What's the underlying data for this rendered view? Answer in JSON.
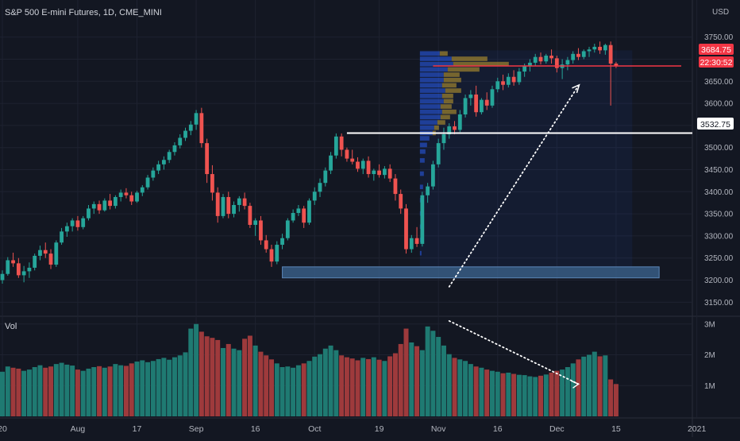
{
  "header": {
    "symbol_title": "S&P 500 E-mini Futures, 1D, CME_MINI",
    "currency": "USD"
  },
  "volume_pane": {
    "label": "Vol"
  },
  "price_badges": {
    "last_price": "3684.75",
    "countdown": "22:30:52",
    "level": "3532.75"
  },
  "colors": {
    "background": "#131722",
    "up": "#26a69a",
    "down": "#ef5350",
    "vol_up": "#1f7a72",
    "vol_down": "#9e3a3c",
    "level_line": "#ffffff",
    "last_price_line": "#f23645",
    "zone": "#3f6a97",
    "profile_up": "#2962ff",
    "profile_value": "#b8962e",
    "grid": "#1e2230",
    "axis_text": "#b2b5be"
  },
  "chart_data": [
    {
      "type": "candlestick",
      "title": "S&P 500 E-mini Futures, 1D, CME_MINI",
      "ylabel": "USD",
      "ylim": [
        3120,
        3780
      ],
      "y_ticks": [
        "3750.00",
        "3700.00",
        "3650.00",
        "3600.00",
        "3550.00",
        "3500.00",
        "3450.00",
        "3400.00",
        "3350.00",
        "3300.00",
        "3250.00",
        "3200.00",
        "3150.00"
      ],
      "x_ticks": [
        "20",
        "Aug",
        "17",
        "Sep",
        "16",
        "Oct",
        "19",
        "Nov",
        "16",
        "Dec",
        "15",
        "2021"
      ],
      "x_tick_index": [
        0,
        14,
        25,
        36,
        47,
        58,
        70,
        81,
        92,
        103,
        114,
        129
      ],
      "grid": true,
      "ohlc": [
        [
          3200,
          3222,
          3192,
          3214
        ],
        [
          3214,
          3252,
          3210,
          3245
        ],
        [
          3245,
          3262,
          3230,
          3238
        ],
        [
          3238,
          3250,
          3205,
          3211
        ],
        [
          3211,
          3232,
          3195,
          3220
        ],
        [
          3220,
          3240,
          3205,
          3228
        ],
        [
          3228,
          3260,
          3222,
          3255
        ],
        [
          3255,
          3278,
          3245,
          3268
        ],
        [
          3268,
          3285,
          3250,
          3260
        ],
        [
          3260,
          3270,
          3225,
          3235
        ],
        [
          3235,
          3290,
          3230,
          3285
        ],
        [
          3285,
          3318,
          3280,
          3310
        ],
        [
          3310,
          3330,
          3298,
          3322
        ],
        [
          3322,
          3340,
          3310,
          3335
        ],
        [
          3335,
          3345,
          3312,
          3320
        ],
        [
          3320,
          3345,
          3315,
          3340
        ],
        [
          3340,
          3370,
          3335,
          3362
        ],
        [
          3362,
          3378,
          3350,
          3372
        ],
        [
          3372,
          3380,
          3350,
          3358
        ],
        [
          3358,
          3385,
          3355,
          3380
        ],
        [
          3380,
          3395,
          3360,
          3368
        ],
        [
          3368,
          3392,
          3362,
          3388
        ],
        [
          3388,
          3405,
          3378,
          3398
        ],
        [
          3398,
          3408,
          3385,
          3392
        ],
        [
          3392,
          3400,
          3370,
          3378
        ],
        [
          3378,
          3402,
          3375,
          3398
        ],
        [
          3398,
          3415,
          3390,
          3410
        ],
        [
          3410,
          3438,
          3405,
          3432
        ],
        [
          3432,
          3455,
          3425,
          3448
        ],
        [
          3448,
          3470,
          3440,
          3462
        ],
        [
          3462,
          3480,
          3450,
          3472
        ],
        [
          3472,
          3495,
          3465,
          3490
        ],
        [
          3490,
          3512,
          3482,
          3505
        ],
        [
          3505,
          3530,
          3498,
          3522
        ],
        [
          3522,
          3545,
          3515,
          3538
        ],
        [
          3538,
          3560,
          3528,
          3552
        ],
        [
          3552,
          3585,
          3540,
          3578
        ],
        [
          3578,
          3590,
          3500,
          3510
        ],
        [
          3510,
          3520,
          3420,
          3440
        ],
        [
          3440,
          3460,
          3380,
          3398
        ],
        [
          3398,
          3410,
          3330,
          3345
        ],
        [
          3345,
          3395,
          3340,
          3388
        ],
        [
          3388,
          3400,
          3340,
          3350
        ],
        [
          3350,
          3378,
          3342,
          3370
        ],
        [
          3370,
          3390,
          3355,
          3385
        ],
        [
          3385,
          3398,
          3360,
          3368
        ],
        [
          3368,
          3375,
          3318,
          3325
        ],
        [
          3325,
          3340,
          3300,
          3335
        ],
        [
          3335,
          3345,
          3280,
          3290
        ],
        [
          3290,
          3302,
          3262,
          3270
        ],
        [
          3270,
          3280,
          3230,
          3242
        ],
        [
          3242,
          3288,
          3236,
          3280
        ],
        [
          3280,
          3305,
          3270,
          3295
        ],
        [
          3295,
          3340,
          3290,
          3335
        ],
        [
          3335,
          3360,
          3330,
          3352
        ],
        [
          3352,
          3370,
          3345,
          3362
        ],
        [
          3362,
          3368,
          3318,
          3330
        ],
        [
          3330,
          3385,
          3325,
          3380
        ],
        [
          3380,
          3410,
          3370,
          3400
        ],
        [
          3400,
          3430,
          3388,
          3420
        ],
        [
          3420,
          3455,
          3412,
          3448
        ],
        [
          3448,
          3490,
          3440,
          3482
        ],
        [
          3482,
          3532,
          3475,
          3525
        ],
        [
          3525,
          3532,
          3480,
          3495
        ],
        [
          3495,
          3500,
          3468,
          3475
        ],
        [
          3475,
          3495,
          3462,
          3468
        ],
        [
          3468,
          3478,
          3445,
          3452
        ],
        [
          3452,
          3475,
          3440,
          3470
        ],
        [
          3470,
          3480,
          3432,
          3440
        ],
        [
          3440,
          3452,
          3425,
          3448
        ],
        [
          3448,
          3462,
          3432,
          3438
        ],
        [
          3438,
          3458,
          3430,
          3452
        ],
        [
          3452,
          3462,
          3422,
          3430
        ],
        [
          3430,
          3440,
          3380,
          3395
        ],
        [
          3395,
          3405,
          3350,
          3362
        ],
        [
          3362,
          3372,
          3260,
          3270
        ],
        [
          3270,
          3302,
          3262,
          3295
        ],
        [
          3295,
          3320,
          3275,
          3282
        ],
        [
          3282,
          3400,
          3276,
          3392
        ],
        [
          3392,
          3420,
          3375,
          3412
        ],
        [
          3412,
          3470,
          3405,
          3462
        ],
        [
          3462,
          3520,
          3455,
          3510
        ],
        [
          3510,
          3545,
          3495,
          3530
        ],
        [
          3530,
          3555,
          3520,
          3548
        ],
        [
          3548,
          3560,
          3530,
          3540
        ],
        [
          3540,
          3585,
          3535,
          3575
        ],
        [
          3575,
          3620,
          3568,
          3612
        ],
        [
          3612,
          3630,
          3595,
          3620
        ],
        [
          3620,
          3640,
          3570,
          3580
        ],
        [
          3580,
          3612,
          3575,
          3608
        ],
        [
          3608,
          3625,
          3585,
          3595
        ],
        [
          3595,
          3640,
          3590,
          3632
        ],
        [
          3632,
          3658,
          3625,
          3650
        ],
        [
          3650,
          3665,
          3630,
          3642
        ],
        [
          3642,
          3668,
          3636,
          3660
        ],
        [
          3660,
          3675,
          3640,
          3648
        ],
        [
          3648,
          3680,
          3642,
          3672
        ],
        [
          3672,
          3690,
          3660,
          3685
        ],
        [
          3685,
          3700,
          3672,
          3692
        ],
        [
          3692,
          3712,
          3685,
          3705
        ],
        [
          3705,
          3715,
          3688,
          3695
        ],
        [
          3695,
          3712,
          3690,
          3708
        ],
        [
          3708,
          3722,
          3690,
          3702
        ],
        [
          3702,
          3708,
          3670,
          3680
        ],
        [
          3680,
          3700,
          3655,
          3688
        ],
        [
          3688,
          3705,
          3675,
          3698
        ],
        [
          3698,
          3718,
          3690,
          3712
        ],
        [
          3712,
          3725,
          3698,
          3705
        ],
        [
          3705,
          3722,
          3700,
          3718
        ],
        [
          3718,
          3728,
          3705,
          3722
        ],
        [
          3722,
          3735,
          3715,
          3728
        ],
        [
          3728,
          3740,
          3712,
          3720
        ],
        [
          3720,
          3735,
          3710,
          3732
        ],
        [
          3732,
          3740,
          3595,
          3690
        ],
        [
          3690,
          3694,
          3680,
          3685
        ]
      ]
    },
    {
      "type": "bar",
      "title": "Vol",
      "ylim": [
        0,
        3200000
      ],
      "y_ticks": [
        "3M",
        "2M",
        "1M"
      ],
      "values": [
        1.45,
        1.62,
        1.58,
        1.55,
        1.48,
        1.52,
        1.6,
        1.66,
        1.58,
        1.62,
        1.7,
        1.74,
        1.68,
        1.65,
        1.52,
        1.48,
        1.55,
        1.6,
        1.63,
        1.58,
        1.62,
        1.7,
        1.66,
        1.64,
        1.72,
        1.78,
        1.82,
        1.76,
        1.8,
        1.86,
        1.9,
        1.84,
        1.92,
        1.98,
        2.08,
        2.85,
        3.0,
        2.75,
        2.6,
        2.55,
        2.48,
        2.22,
        2.35,
        2.2,
        2.15,
        2.52,
        2.62,
        2.3,
        2.1,
        1.98,
        1.85,
        1.72,
        1.6,
        1.62,
        1.58,
        1.66,
        1.72,
        1.8,
        1.94,
        2.02,
        2.2,
        2.3,
        2.15,
        1.98,
        1.92,
        1.88,
        1.82,
        1.9,
        1.86,
        1.92,
        1.84,
        1.8,
        1.95,
        2.05,
        2.35,
        2.85,
        2.4,
        2.28,
        2.15,
        2.92,
        2.78,
        2.58,
        2.3,
        2.02,
        1.9,
        1.85,
        1.8,
        1.7,
        1.62,
        1.58,
        1.52,
        1.48,
        1.45,
        1.4,
        1.42,
        1.38,
        1.35,
        1.34,
        1.3,
        1.28,
        1.32,
        1.36,
        1.42,
        1.48,
        1.52,
        1.6,
        1.72,
        1.85,
        1.94,
        2.0,
        2.1,
        1.95,
        1.98,
        1.2,
        1.05
      ]
    }
  ]
}
